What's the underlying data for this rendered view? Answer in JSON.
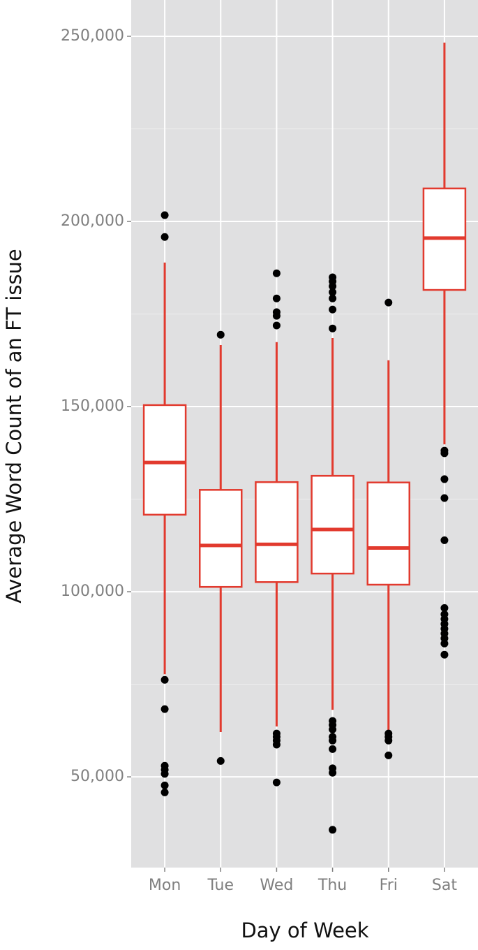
{
  "chart_data": {
    "type": "box",
    "x_label": "Day of Week",
    "y_label": "Average Word Count of an FT issue",
    "categories": [
      "Mon",
      "Tue",
      "Wed",
      "Thu",
      "Fri",
      "Sat"
    ],
    "ylim": [
      25500,
      259800
    ],
    "yticks": [
      {
        "value": 50000,
        "label": "50,000"
      },
      {
        "value": 100000,
        "label": "100,000"
      },
      {
        "value": 150000,
        "label": "150,000"
      },
      {
        "value": 200000,
        "label": "200,000"
      },
      {
        "value": 250000,
        "label": "250,000"
      }
    ],
    "grid": true,
    "minor_grid": true,
    "background": "#e0e0e1",
    "color": "#e23a2e",
    "outlier_color": "#000000",
    "boxes": [
      {
        "whisker_low": 77700,
        "q1": 120800,
        "median": 134900,
        "q3": 150400,
        "whisker_high": 188900,
        "outliers": [
          201700,
          195800,
          76200,
          68300,
          53000,
          51900,
          50800,
          47700,
          45800
        ]
      },
      {
        "whisker_low": 62100,
        "q1": 101300,
        "median": 112500,
        "q3": 127500,
        "whisker_high": 166600,
        "outliers": [
          169400,
          54300
        ]
      },
      {
        "whisker_low": 63600,
        "q1": 102600,
        "median": 112800,
        "q3": 129600,
        "whisker_high": 167400,
        "outliers": [
          186000,
          179200,
          175500,
          174500,
          171900,
          61700,
          60800,
          59800,
          58700,
          48500
        ]
      },
      {
        "whisker_low": 68100,
        "q1": 104900,
        "median": 116800,
        "q3": 131300,
        "whisker_high": 168500,
        "outliers": [
          184900,
          183800,
          182500,
          180900,
          179200,
          176200,
          171100,
          65100,
          64000,
          62800,
          60800,
          59800,
          57500,
          52300,
          51100,
          35700
        ]
      },
      {
        "whisker_low": 62500,
        "q1": 101900,
        "median": 111800,
        "q3": 129500,
        "whisker_high": 162500,
        "outliers": [
          178100,
          61700,
          60800,
          59800,
          55800
        ]
      },
      {
        "whisker_low": 139800,
        "q1": 181500,
        "median": 195500,
        "q3": 208900,
        "whisker_high": 248300,
        "outliers": [
          138100,
          137400,
          130400,
          125300,
          113900,
          95600,
          93900,
          92600,
          91300,
          90000,
          88700,
          87400,
          86000,
          83000
        ]
      }
    ]
  }
}
